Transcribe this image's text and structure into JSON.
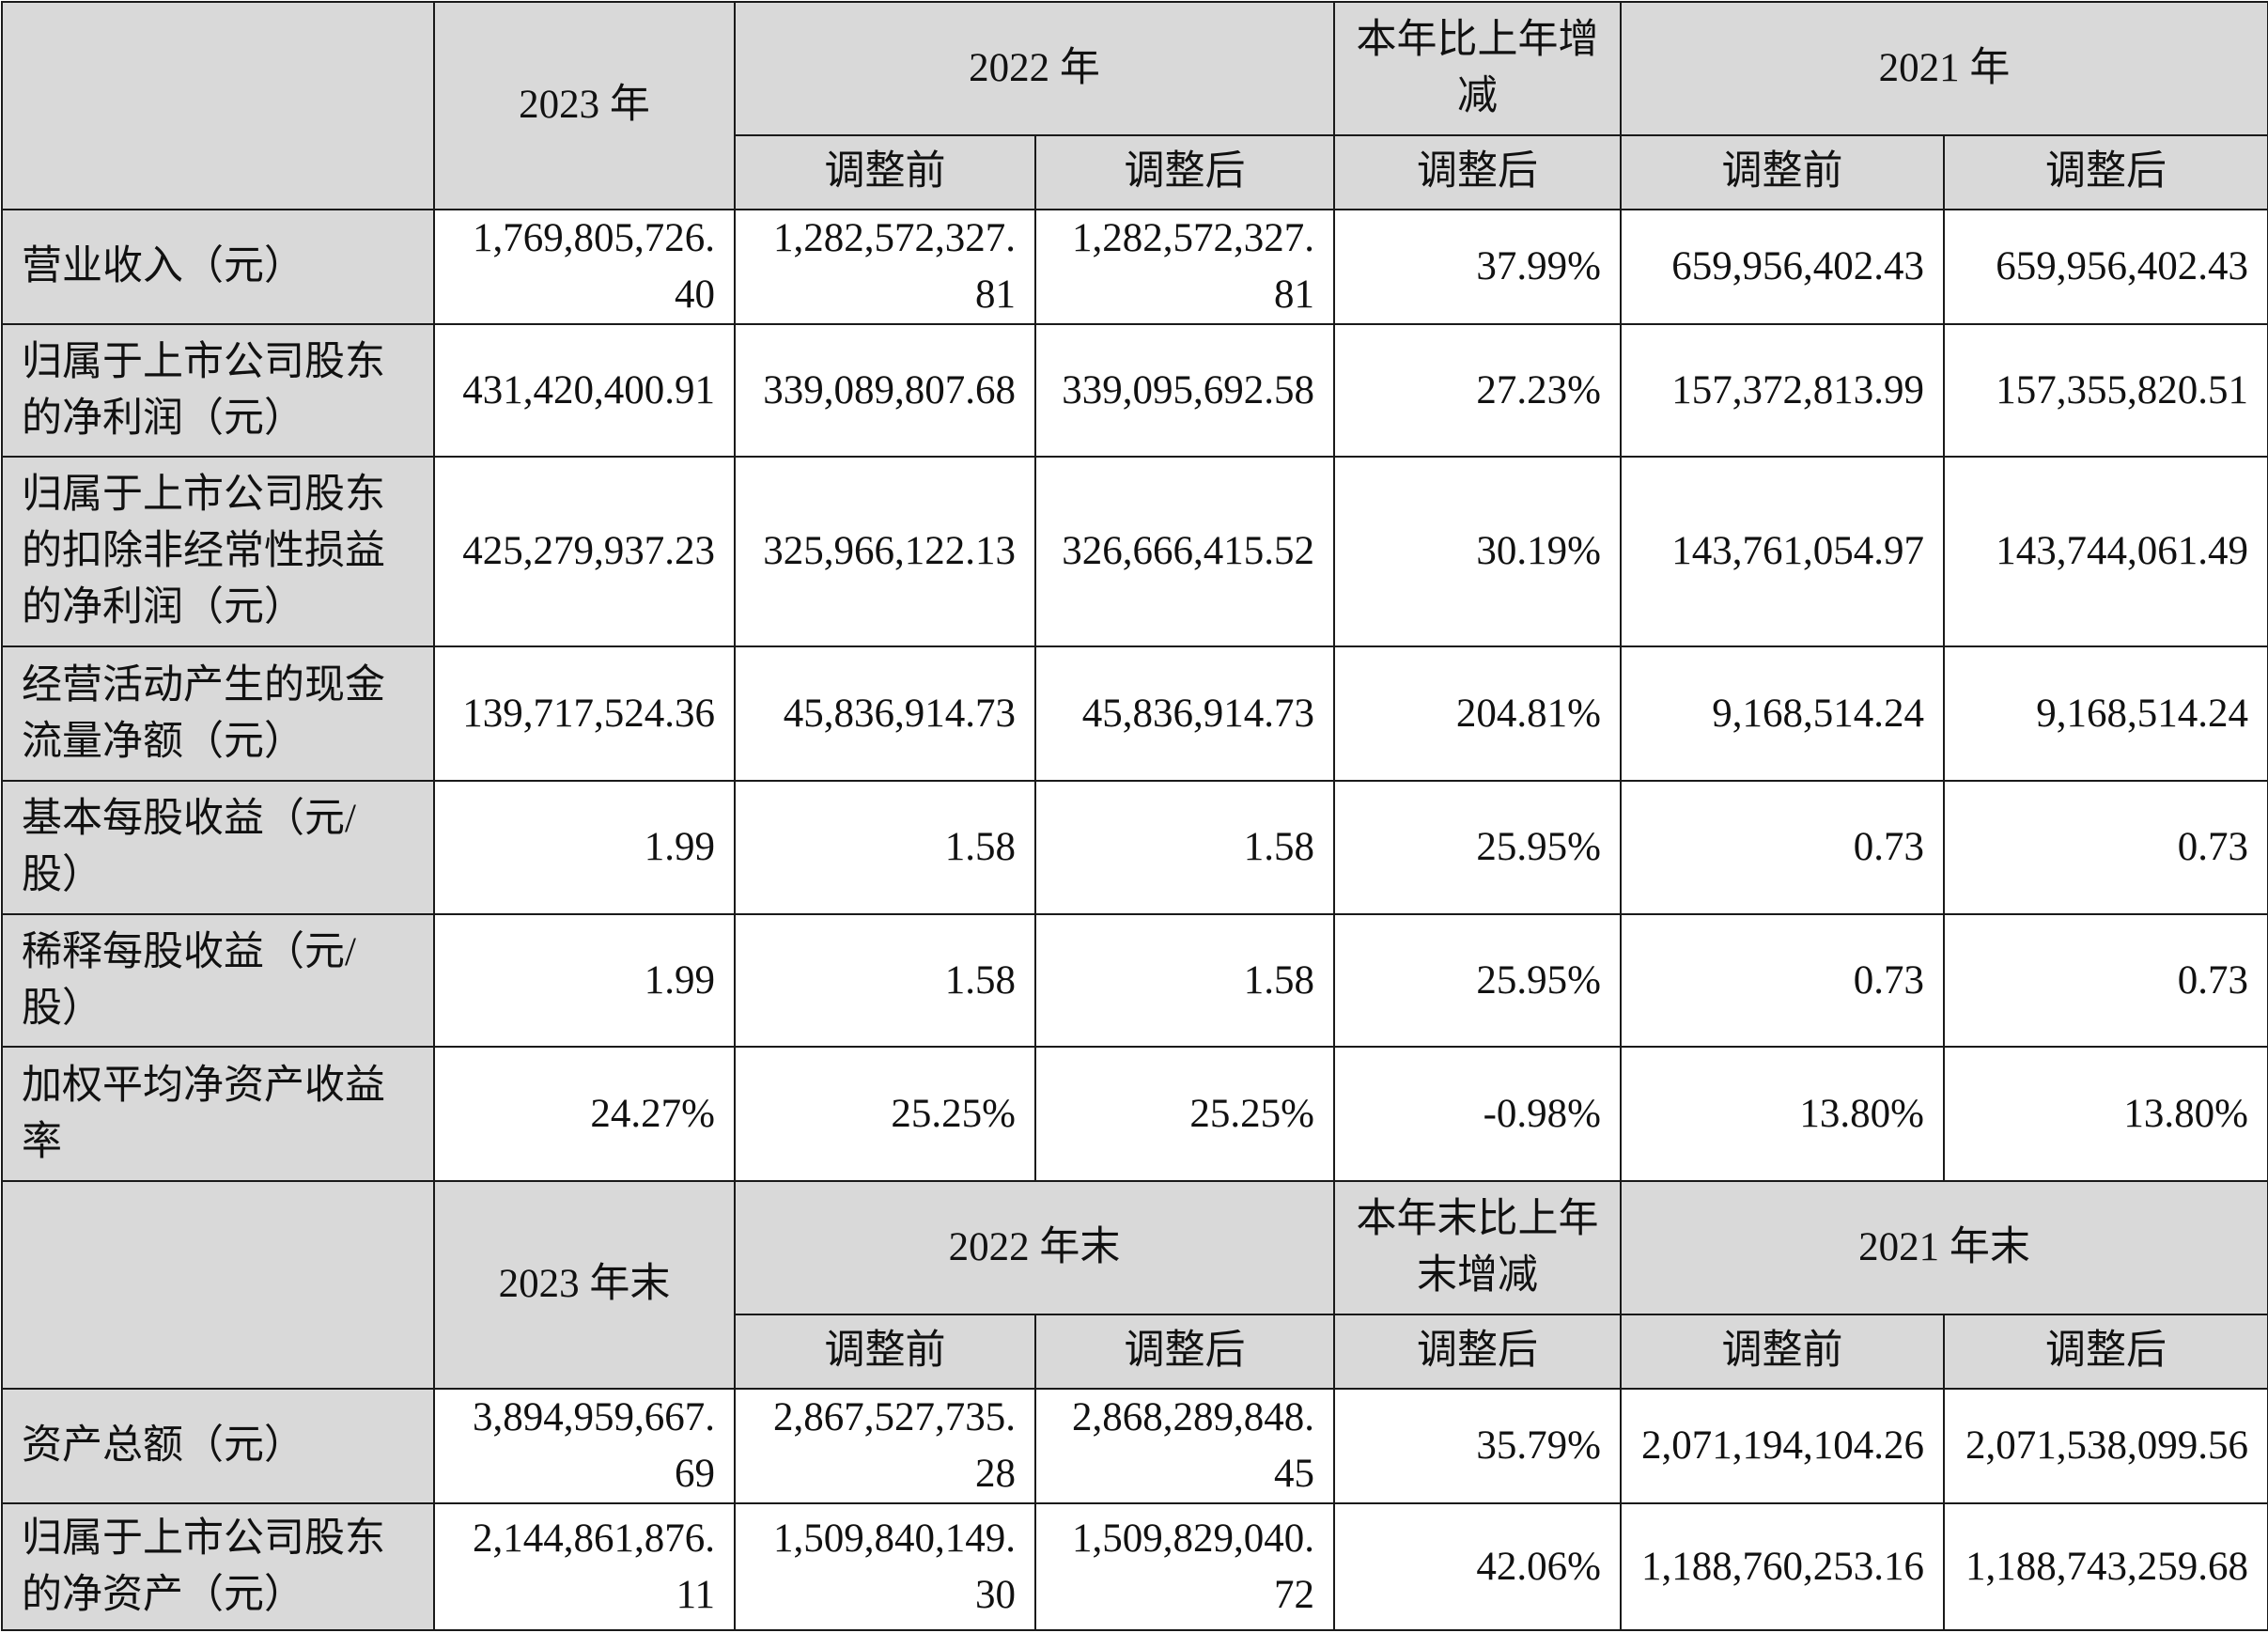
{
  "headers": {
    "year_2023": "2023 年",
    "year_2022": "2022 年",
    "change": "本年比上年增减",
    "year_2021": "2021 年",
    "before": "调整前",
    "after": "调整后",
    "yearend_2023": "2023 年末",
    "yearend_2022": "2022 年末",
    "change_end": "本年末比上年末增减",
    "yearend_2021": "2021 年末"
  },
  "rows": [
    {
      "label": "营业收入（元）",
      "y2023": "1,769,805,726.40",
      "y2022_before": "1,282,572,327.81",
      "y2022_after": "1,282,572,327.81",
      "change": "37.99%",
      "y2021_before": "659,956,402.43",
      "y2021_after": "659,956,402.43"
    },
    {
      "label": "归属于上市公司股东的净利润（元）",
      "y2023": "431,420,400.91",
      "y2022_before": "339,089,807.68",
      "y2022_after": "339,095,692.58",
      "change": "27.23%",
      "y2021_before": "157,372,813.99",
      "y2021_after": "157,355,820.51"
    },
    {
      "label": "归属于上市公司股东的扣除非经常性损益的净利润（元）",
      "y2023": "425,279,937.23",
      "y2022_before": "325,966,122.13",
      "y2022_after": "326,666,415.52",
      "change": "30.19%",
      "y2021_before": "143,761,054.97",
      "y2021_after": "143,744,061.49"
    },
    {
      "label": "经营活动产生的现金流量净额（元）",
      "y2023": "139,717,524.36",
      "y2022_before": "45,836,914.73",
      "y2022_after": "45,836,914.73",
      "change": "204.81%",
      "y2021_before": "9,168,514.24",
      "y2021_after": "9,168,514.24"
    },
    {
      "label": "基本每股收益（元/股）",
      "y2023": "1.99",
      "y2022_before": "1.58",
      "y2022_after": "1.58",
      "change": "25.95%",
      "y2021_before": "0.73",
      "y2021_after": "0.73"
    },
    {
      "label": "稀释每股收益（元/股）",
      "y2023": "1.99",
      "y2022_before": "1.58",
      "y2022_after": "1.58",
      "change": "25.95%",
      "y2021_before": "0.73",
      "y2021_after": "0.73"
    },
    {
      "label": "加权平均净资产收益率",
      "y2023": "24.27%",
      "y2022_before": "25.25%",
      "y2022_after": "25.25%",
      "change": "-0.98%",
      "y2021_before": "13.80%",
      "y2021_after": "13.80%"
    },
    {
      "label": "资产总额（元）",
      "y2023": "3,894,959,667.69",
      "y2022_before": "2,867,527,735.28",
      "y2022_after": "2,868,289,848.45",
      "change": "35.79%",
      "y2021_before": "2,071,194,104.26",
      "y2021_after": "2,071,538,099.56"
    },
    {
      "label": "归属于上市公司股东的净资产（元）",
      "y2023": "2,144,861,876.11",
      "y2022_before": "1,509,840,149.30",
      "y2022_after": "1,509,829,040.72",
      "change": "42.06%",
      "y2021_before": "1,188,760,253.16",
      "y2021_after": "1,188,743,259.68"
    }
  ]
}
